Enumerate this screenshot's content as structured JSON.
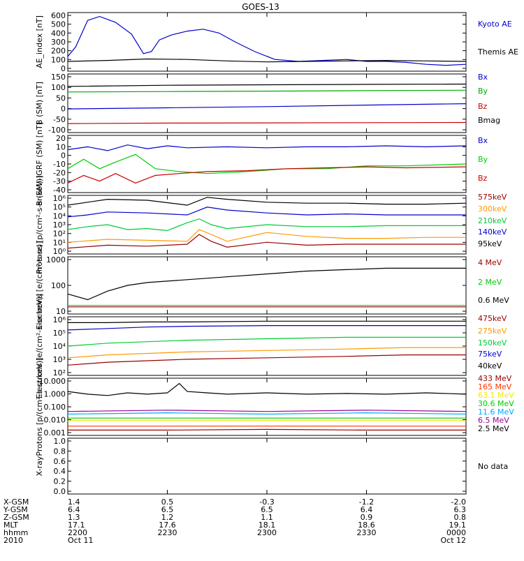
{
  "title": "GOES-13",
  "chart_data": [
    {
      "type": "line",
      "ylabel": "AE_index [nT]",
      "yticks": [
        "600",
        "500",
        "400",
        "300",
        "200",
        "100",
        "0"
      ],
      "ylim": [
        0,
        600
      ],
      "log": false,
      "series": [
        {
          "name": "Kyoto AE",
          "color": "#0000cc",
          "x": [
            0,
            0.02,
            0.05,
            0.08,
            0.12,
            0.16,
            0.19,
            0.21,
            0.23,
            0.26,
            0.3,
            0.34,
            0.38,
            0.42,
            0.47,
            0.52,
            0.58,
            0.64,
            0.7,
            0.75,
            0.8,
            0.85,
            0.9,
            0.95,
            1.0
          ],
          "values": [
            150,
            250,
            520,
            560,
            500,
            380,
            180,
            200,
            320,
            370,
            410,
            430,
            390,
            300,
            200,
            120,
            100,
            110,
            120,
            100,
            100,
            90,
            70,
            60,
            70
          ]
        },
        {
          "name": "Themis AE",
          "color": "#000000",
          "x": [
            0,
            0.1,
            0.2,
            0.3,
            0.4,
            0.5,
            0.6,
            0.7,
            0.8,
            0.9,
            1.0
          ],
          "values": [
            100,
            110,
            125,
            120,
            105,
            95,
            100,
            105,
            110,
            105,
            100
          ]
        }
      ]
    },
    {
      "type": "line",
      "ylabel": "B (SM) [nT]",
      "yticks": [
        "150",
        "100",
        "50",
        "0",
        "-50",
        "-100"
      ],
      "ylim": [
        -110,
        150
      ],
      "log": false,
      "series": [
        {
          "name": "Bx",
          "color": "#0000cc",
          "x": [
            0,
            0.25,
            0.5,
            0.75,
            1.0
          ],
          "values": [
            -5,
            0,
            5,
            12,
            18
          ]
        },
        {
          "name": "By",
          "color": "#00aa00",
          "x": [
            0,
            0.25,
            0.5,
            0.75,
            1.0
          ],
          "values": [
            70,
            72,
            74,
            76,
            78
          ]
        },
        {
          "name": "Bz",
          "color": "#cc0000",
          "x": [
            0,
            0.25,
            0.5,
            0.75,
            1.0
          ],
          "values": [
            -70,
            -68,
            -67,
            -66,
            -65
          ]
        },
        {
          "name": "Bmag",
          "color": "#000000",
          "x": [
            0,
            0.25,
            0.5,
            0.75,
            1.0
          ],
          "values": [
            95,
            100,
            102,
            104,
            105
          ]
        }
      ]
    },
    {
      "type": "line",
      "ylabel": "B (SM)-IGRF (SM) [nT]",
      "yticks": [
        "20",
        "10",
        "0",
        "-10",
        "-20",
        "-30",
        "-40"
      ],
      "ylim": [
        -40,
        20
      ],
      "log": false,
      "series": [
        {
          "name": "Bx",
          "color": "#0000cc",
          "x": [
            0,
            0.05,
            0.1,
            0.15,
            0.2,
            0.25,
            0.3,
            0.4,
            0.5,
            0.6,
            0.7,
            0.8,
            0.9,
            1.0
          ],
          "values": [
            5,
            8,
            4,
            10,
            6,
            9,
            7,
            8,
            7,
            8,
            8,
            9,
            8,
            9
          ]
        },
        {
          "name": "By",
          "color": "#00cc00",
          "x": [
            0,
            0.04,
            0.08,
            0.12,
            0.17,
            0.22,
            0.28,
            0.35,
            0.45,
            0.55,
            0.65,
            0.75,
            0.85,
            1.0
          ],
          "values": [
            -15,
            -5,
            -15,
            -8,
            0,
            -15,
            -18,
            -20,
            -18,
            -15,
            -15,
            -12,
            -12,
            -10
          ]
        },
        {
          "name": "Bz",
          "color": "#cc0000",
          "x": [
            0,
            0.04,
            0.08,
            0.12,
            0.17,
            0.22,
            0.28,
            0.35,
            0.45,
            0.55,
            0.65,
            0.75,
            0.85,
            1.0
          ],
          "values": [
            -30,
            -22,
            -28,
            -20,
            -30,
            -22,
            -20,
            -18,
            -17,
            -15,
            -14,
            -13,
            -14,
            -13
          ]
        }
      ]
    },
    {
      "type": "line",
      "ylabel": "Protons [p/(cm²-s-sr-keV)]",
      "yticks": [
        "10⁶",
        "10⁵",
        "10⁴",
        "10³",
        "10²",
        "10¹",
        "10⁰"
      ],
      "ylim": [
        0,
        6
      ],
      "log": true,
      "series": [
        {
          "name": "575keV",
          "color": "#990000",
          "x": [
            0,
            0.1,
            0.2,
            0.3,
            0.33,
            0.36,
            0.4,
            0.5,
            0.6,
            0.7,
            0.8,
            0.9,
            1.0
          ],
          "values": [
            0.6,
            0.9,
            0.8,
            1.0,
            2.0,
            1.3,
            0.7,
            1.2,
            0.9,
            1.0,
            1.0,
            1.0,
            1.0
          ]
        },
        {
          "name": "300keV",
          "color": "#ff9900",
          "x": [
            0,
            0.1,
            0.2,
            0.3,
            0.33,
            0.36,
            0.4,
            0.5,
            0.6,
            0.7,
            0.8,
            0.9,
            1.0
          ],
          "values": [
            1.2,
            1.5,
            1.4,
            1.3,
            2.5,
            2.0,
            1.3,
            2.2,
            1.8,
            1.6,
            1.6,
            1.7,
            1.7
          ]
        },
        {
          "name": "210keV",
          "color": "#00cc33",
          "x": [
            0,
            0.05,
            0.1,
            0.15,
            0.2,
            0.25,
            0.3,
            0.33,
            0.36,
            0.4,
            0.5,
            0.6,
            0.7,
            0.8,
            0.9,
            1.0
          ],
          "values": [
            2.5,
            2.8,
            3.0,
            2.5,
            2.6,
            2.4,
            3.2,
            3.6,
            3.0,
            2.6,
            3.0,
            2.8,
            2.8,
            2.9,
            2.9,
            2.9
          ]
        },
        {
          "name": "140keV",
          "color": "#0000cc",
          "x": [
            0,
            0.05,
            0.1,
            0.2,
            0.3,
            0.35,
            0.4,
            0.5,
            0.6,
            0.7,
            0.8,
            0.9,
            1.0
          ],
          "values": [
            3.8,
            4.0,
            4.3,
            4.2,
            4.0,
            4.8,
            4.5,
            4.2,
            4.0,
            4.1,
            4.0,
            4.0,
            4.0
          ]
        },
        {
          "name": "95keV",
          "color": "#000000",
          "x": [
            0,
            0.05,
            0.1,
            0.2,
            0.3,
            0.35,
            0.4,
            0.5,
            0.6,
            0.7,
            0.8,
            0.9,
            1.0
          ],
          "values": [
            5.0,
            5.3,
            5.6,
            5.5,
            5.0,
            5.8,
            5.6,
            5.3,
            5.2,
            5.2,
            5.1,
            5.1,
            5.2
          ]
        }
      ]
    },
    {
      "type": "line",
      "ylabel": "Electrons [e/(cm²-s-sr)]",
      "yticks": [
        "1000",
        "100",
        "10"
      ],
      "ylim": [
        1,
        3
      ],
      "log": true,
      "series": [
        {
          "name": "4 MeV",
          "color": "#990000",
          "x": [
            0,
            0.25,
            0.5,
            0.75,
            1.0
          ],
          "values": [
            1.25,
            1.25,
            1.25,
            1.25,
            1.25
          ]
        },
        {
          "name": "2 MeV",
          "color": "#00cc00",
          "x": [
            0,
            0.25,
            0.5,
            0.75,
            1.0
          ],
          "values": [
            1.3,
            1.3,
            1.3,
            1.3,
            1.3
          ]
        },
        {
          "name": "0.6 MeV",
          "color": "#000000",
          "x": [
            0,
            0.05,
            0.1,
            0.15,
            0.2,
            0.3,
            0.4,
            0.5,
            0.6,
            0.7,
            0.8,
            0.9,
            1.0
          ],
          "values": [
            1.7,
            1.5,
            1.8,
            2.0,
            2.1,
            2.2,
            2.3,
            2.4,
            2.5,
            2.55,
            2.6,
            2.6,
            2.6
          ]
        }
      ]
    },
    {
      "type": "line",
      "ylabel": "Electrons [e/(cm²-s-sr-keV)]",
      "yticks": [
        "10⁶",
        "10⁵",
        "10⁴",
        "10³",
        "10²"
      ],
      "ylim": [
        2,
        6
      ],
      "log": true,
      "series": [
        {
          "name": "475keV",
          "color": "#990000",
          "x": [
            0,
            0.1,
            0.2,
            0.3,
            0.5,
            0.7,
            0.85,
            1.0
          ],
          "values": [
            2.7,
            2.9,
            3.0,
            3.1,
            3.2,
            3.3,
            3.4,
            3.4
          ]
        },
        {
          "name": "275keV",
          "color": "#ff9900",
          "x": [
            0,
            0.1,
            0.2,
            0.3,
            0.5,
            0.7,
            0.85,
            1.0
          ],
          "values": [
            3.2,
            3.4,
            3.5,
            3.6,
            3.7,
            3.8,
            3.9,
            3.9
          ]
        },
        {
          "name": "150keV",
          "color": "#00cc33",
          "x": [
            0,
            0.1,
            0.2,
            0.3,
            0.5,
            0.7,
            0.85,
            1.0
          ],
          "values": [
            4.0,
            4.2,
            4.3,
            4.4,
            4.5,
            4.6,
            4.6,
            4.6
          ]
        },
        {
          "name": "75keV",
          "color": "#0000cc",
          "x": [
            0,
            0.1,
            0.2,
            0.3,
            0.5,
            0.7,
            0.85,
            1.0
          ],
          "values": [
            5.1,
            5.2,
            5.3,
            5.35,
            5.4,
            5.4,
            5.4,
            5.4
          ]
        },
        {
          "name": "40keV",
          "color": "#000000",
          "x": [
            0,
            0.1,
            0.2,
            0.3,
            0.5,
            0.7,
            0.85,
            1.0
          ],
          "values": [
            5.6,
            5.6,
            5.65,
            5.65,
            5.7,
            5.7,
            5.7,
            5.7
          ]
        }
      ]
    },
    {
      "type": "line",
      "ylabel": "Protons [p/(cm²-s-sr-keV)]",
      "yticks": [
        "10.000",
        "1.000",
        "0.100",
        "0.010",
        "0.001"
      ],
      "ylim": [
        -3,
        1.3
      ],
      "log": true,
      "series": [
        {
          "name": "433 MeV",
          "color": "#990000",
          "x": [
            0,
            0.25,
            0.5,
            0.75,
            1.0
          ],
          "values": [
            -2.6,
            -2.6,
            -2.55,
            -2.6,
            -2.6
          ]
        },
        {
          "name": "165 MeV",
          "color": "#ff3300",
          "x": [
            0,
            0.25,
            0.5,
            0.75,
            1.0
          ],
          "values": [
            -2.3,
            -2.3,
            -2.3,
            -2.3,
            -2.3
          ]
        },
        {
          "name": "63.1 MeV",
          "color": "#eeee00",
          "x": [
            0,
            0.25,
            0.5,
            0.75,
            1.0
          ],
          "values": [
            -1.9,
            -1.9,
            -1.9,
            -1.9,
            -1.9
          ]
        },
        {
          "name": "30.6 MeV",
          "color": "#00cc00",
          "x": [
            0,
            0.25,
            0.5,
            0.75,
            1.0
          ],
          "values": [
            -1.7,
            -1.7,
            -1.7,
            -1.7,
            -1.7
          ]
        },
        {
          "name": "11.6 MeV",
          "color": "#00aaff",
          "x": [
            0,
            0.25,
            0.5,
            0.75,
            1.0
          ],
          "values": [
            -1.4,
            -1.3,
            -1.4,
            -1.3,
            -1.4
          ]
        },
        {
          "name": "6.5 MeV",
          "color": "#990099",
          "x": [
            0,
            0.25,
            0.5,
            0.75,
            1.0
          ],
          "values": [
            -1.2,
            -1.1,
            -1.2,
            -1.1,
            -1.2
          ]
        },
        {
          "name": "2.5 MeV",
          "color": "#000000",
          "x": [
            0,
            0.05,
            0.1,
            0.15,
            0.2,
            0.25,
            0.28,
            0.3,
            0.35,
            0.4,
            0.5,
            0.6,
            0.7,
            0.8,
            0.9,
            1.0
          ],
          "values": [
            0.3,
            0.1,
            0.0,
            0.2,
            0.1,
            0.2,
            0.9,
            0.3,
            0.2,
            0.1,
            0.2,
            0.1,
            0.15,
            0.1,
            0.2,
            0.1
          ]
        }
      ]
    },
    {
      "type": "line",
      "ylabel": "X-ray",
      "yticks": [
        "1.0",
        "0.8",
        "0.6",
        "0.4",
        "0.2",
        "0.0"
      ],
      "ylim": [
        0,
        1
      ],
      "log": false,
      "note": "No data",
      "series": []
    }
  ],
  "footer": {
    "row_labels": [
      "X-GSM",
      "Y-GSM",
      "Z-GSM",
      "MLT",
      "hhmm",
      "2010"
    ],
    "columns": [
      [
        "1.4",
        "6.4",
        "1.3",
        "17.1",
        "2200",
        "Oct 11"
      ],
      [
        "0.5",
        "6.5",
        "1.2",
        "17.6",
        "2230",
        ""
      ],
      [
        "-0.3",
        "6.5",
        "1.1",
        "18.1",
        "2300",
        ""
      ],
      [
        "-1.2",
        "6.4",
        "0.9",
        "18.6",
        "2330",
        ""
      ],
      [
        "-2.0",
        "6.3",
        "0.8",
        "19.1",
        "0000",
        "Oct 12"
      ]
    ]
  }
}
